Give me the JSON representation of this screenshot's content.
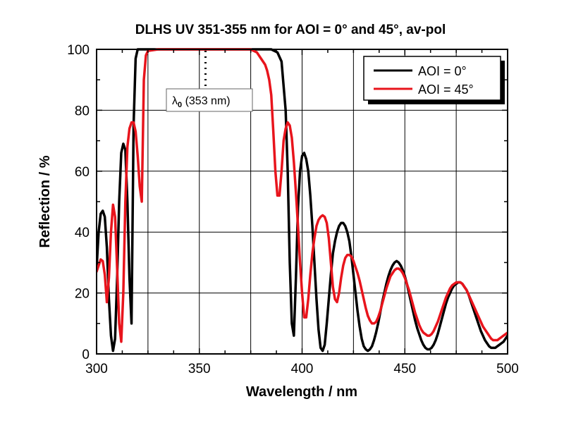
{
  "chart_data": {
    "type": "line",
    "title": "DLHS UV 351-355 nm for AOI = 0° and 45°, av-pol",
    "xlabel": "Wavelength / nm",
    "ylabel": "Reflection / %",
    "xlim": [
      300,
      500
    ],
    "ylim": [
      0,
      100
    ],
    "xticks": [
      300,
      350,
      400,
      450,
      500
    ],
    "yticks": [
      0,
      20,
      40,
      60,
      80,
      100
    ],
    "grid": true,
    "legend_position": "top-right",
    "annotation": {
      "symbol": "λ",
      "subscript": "0",
      "text": " (353 nm)",
      "x": 353
    },
    "series": [
      {
        "name": "AOI = 0°",
        "color": "#000000",
        "points": [
          [
            300,
            28
          ],
          [
            301,
            40
          ],
          [
            302,
            46
          ],
          [
            303,
            47
          ],
          [
            304,
            45
          ],
          [
            305,
            35
          ],
          [
            306,
            18
          ],
          [
            307,
            6
          ],
          [
            308,
            1
          ],
          [
            309,
            5
          ],
          [
            310,
            25
          ],
          [
            311,
            50
          ],
          [
            312,
            66
          ],
          [
            313,
            69
          ],
          [
            314,
            67
          ],
          [
            315,
            50
          ],
          [
            316,
            25
          ],
          [
            317,
            10
          ],
          [
            318,
            75
          ],
          [
            319,
            97
          ],
          [
            320,
            100
          ],
          [
            325,
            100
          ],
          [
            330,
            100
          ],
          [
            340,
            100
          ],
          [
            350,
            100
          ],
          [
            360,
            100
          ],
          [
            370,
            100
          ],
          [
            380,
            100
          ],
          [
            385,
            100
          ],
          [
            388,
            99
          ],
          [
            390,
            96
          ],
          [
            392,
            80
          ],
          [
            393,
            60
          ],
          [
            394,
            30
          ],
          [
            395,
            10
          ],
          [
            396,
            6
          ],
          [
            397,
            25
          ],
          [
            398,
            48
          ],
          [
            399,
            60
          ],
          [
            400,
            65
          ],
          [
            401,
            66
          ],
          [
            402,
            64
          ],
          [
            403,
            60
          ],
          [
            404,
            52
          ],
          [
            405,
            42
          ],
          [
            406,
            30
          ],
          [
            407,
            18
          ],
          [
            408,
            8
          ],
          [
            409,
            2
          ],
          [
            410,
            1
          ],
          [
            411,
            3
          ],
          [
            412,
            10
          ],
          [
            413,
            18
          ],
          [
            414,
            26
          ],
          [
            415,
            33
          ],
          [
            416,
            37
          ],
          [
            417,
            40
          ],
          [
            418,
            42
          ],
          [
            419,
            43
          ],
          [
            420,
            43
          ],
          [
            421,
            42
          ],
          [
            422,
            40
          ],
          [
            423,
            37
          ],
          [
            424,
            32
          ],
          [
            425,
            26
          ],
          [
            426,
            20
          ],
          [
            427,
            14
          ],
          [
            428,
            9
          ],
          [
            429,
            5
          ],
          [
            430,
            2.5
          ],
          [
            431,
            1.5
          ],
          [
            432,
            1
          ],
          [
            433,
            1.5
          ],
          [
            434,
            2.5
          ],
          [
            435,
            4.5
          ],
          [
            436,
            7
          ],
          [
            437,
            10
          ],
          [
            438,
            13.5
          ],
          [
            439,
            17
          ],
          [
            440,
            20
          ],
          [
            441,
            23
          ],
          [
            442,
            25.5
          ],
          [
            443,
            27.5
          ],
          [
            444,
            29
          ],
          [
            445,
            30
          ],
          [
            446,
            30.5
          ],
          [
            447,
            30
          ],
          [
            448,
            29
          ],
          [
            449,
            27.5
          ],
          [
            450,
            25.5
          ],
          [
            451,
            23
          ],
          [
            452,
            20
          ],
          [
            453,
            17
          ],
          [
            454,
            14
          ],
          [
            455,
            11
          ],
          [
            456,
            8.5
          ],
          [
            457,
            6.5
          ],
          [
            458,
            4.5
          ],
          [
            459,
            3
          ],
          [
            460,
            2
          ],
          [
            461,
            1.5
          ],
          [
            462,
            1.5
          ],
          [
            463,
            2
          ],
          [
            464,
            3
          ],
          [
            465,
            4.5
          ],
          [
            466,
            6.5
          ],
          [
            467,
            9
          ],
          [
            468,
            11.5
          ],
          [
            469,
            14
          ],
          [
            470,
            16.5
          ],
          [
            471,
            18.5
          ],
          [
            472,
            20
          ],
          [
            473,
            21.5
          ],
          [
            474,
            22.5
          ],
          [
            475,
            23
          ],
          [
            476,
            23.5
          ],
          [
            477,
            23.5
          ],
          [
            478,
            23
          ],
          [
            479,
            22
          ],
          [
            480,
            21
          ],
          [
            481,
            19.5
          ],
          [
            482,
            17.5
          ],
          [
            483,
            15.5
          ],
          [
            484,
            13.5
          ],
          [
            485,
            11.5
          ],
          [
            486,
            9.5
          ],
          [
            487,
            7.5
          ],
          [
            488,
            6
          ],
          [
            489,
            4.5
          ],
          [
            490,
            3.5
          ],
          [
            491,
            2.5
          ],
          [
            492,
            2
          ],
          [
            493,
            2
          ],
          [
            494,
            2
          ],
          [
            495,
            2.5
          ],
          [
            496,
            3
          ],
          [
            497,
            3.5
          ],
          [
            498,
            4
          ],
          [
            499,
            5
          ],
          [
            500,
            6
          ]
        ]
      },
      {
        "name": "AOI = 45°",
        "color": "#e8141c",
        "points": [
          [
            300,
            27
          ],
          [
            301,
            29
          ],
          [
            302,
            31
          ],
          [
            303,
            30.5
          ],
          [
            304,
            26
          ],
          [
            305,
            17
          ],
          [
            306,
            25
          ],
          [
            307,
            40
          ],
          [
            308,
            49
          ],
          [
            309,
            45
          ],
          [
            310,
            28
          ],
          [
            311,
            10
          ],
          [
            312,
            4
          ],
          [
            313,
            20
          ],
          [
            314,
            50
          ],
          [
            315,
            68
          ],
          [
            316,
            74
          ],
          [
            317,
            76
          ],
          [
            318,
            76
          ],
          [
            319,
            73
          ],
          [
            320,
            65
          ],
          [
            321,
            55
          ],
          [
            322,
            50
          ],
          [
            323,
            90
          ],
          [
            324,
            98
          ],
          [
            325,
            99.5
          ],
          [
            330,
            100
          ],
          [
            340,
            100
          ],
          [
            350,
            100
          ],
          [
            360,
            100
          ],
          [
            370,
            100
          ],
          [
            375,
            100
          ],
          [
            378,
            99
          ],
          [
            380,
            97
          ],
          [
            382,
            95
          ],
          [
            383,
            93
          ],
          [
            384,
            90
          ],
          [
            385,
            85
          ],
          [
            386,
            73
          ],
          [
            387,
            60
          ],
          [
            388,
            52
          ],
          [
            389,
            52
          ],
          [
            390,
            60
          ],
          [
            391,
            70
          ],
          [
            392,
            74
          ],
          [
            393,
            76
          ],
          [
            394,
            75
          ],
          [
            395,
            71
          ],
          [
            396,
            63
          ],
          [
            397,
            53
          ],
          [
            398,
            42
          ],
          [
            399,
            30
          ],
          [
            400,
            20
          ],
          [
            401,
            12
          ],
          [
            402,
            12
          ],
          [
            403,
            18
          ],
          [
            404,
            26
          ],
          [
            405,
            33
          ],
          [
            406,
            38
          ],
          [
            407,
            42
          ],
          [
            408,
            44
          ],
          [
            409,
            45
          ],
          [
            410,
            45.5
          ],
          [
            411,
            45
          ],
          [
            412,
            43
          ],
          [
            413,
            38
          ],
          [
            414,
            30
          ],
          [
            415,
            22
          ],
          [
            416,
            18
          ],
          [
            417,
            17
          ],
          [
            418,
            20
          ],
          [
            419,
            25
          ],
          [
            420,
            29
          ],
          [
            421,
            31.5
          ],
          [
            422,
            32.5
          ],
          [
            423,
            32.5
          ],
          [
            424,
            32
          ],
          [
            425,
            30.5
          ],
          [
            426,
            28.5
          ],
          [
            427,
            26.5
          ],
          [
            428,
            24
          ],
          [
            429,
            21
          ],
          [
            430,
            18
          ],
          [
            431,
            15
          ],
          [
            432,
            12.5
          ],
          [
            433,
            11
          ],
          [
            434,
            10
          ],
          [
            435,
            10
          ],
          [
            436,
            10.5
          ],
          [
            437,
            12
          ],
          [
            438,
            14
          ],
          [
            439,
            16.5
          ],
          [
            440,
            19
          ],
          [
            441,
            21.5
          ],
          [
            442,
            23.5
          ],
          [
            443,
            25.5
          ],
          [
            444,
            26.5
          ],
          [
            445,
            27.5
          ],
          [
            446,
            28
          ],
          [
            447,
            28
          ],
          [
            448,
            27.5
          ],
          [
            449,
            26.5
          ],
          [
            450,
            25
          ],
          [
            451,
            23
          ],
          [
            452,
            21
          ],
          [
            453,
            18.5
          ],
          [
            454,
            16
          ],
          [
            455,
            13.5
          ],
          [
            456,
            11.5
          ],
          [
            457,
            9.5
          ],
          [
            458,
            8
          ],
          [
            459,
            7
          ],
          [
            460,
            6.5
          ],
          [
            461,
            6
          ],
          [
            462,
            6
          ],
          [
            463,
            6.5
          ],
          [
            464,
            7.5
          ],
          [
            465,
            9
          ],
          [
            466,
            10.5
          ],
          [
            467,
            12.5
          ],
          [
            468,
            14.5
          ],
          [
            469,
            16.5
          ],
          [
            470,
            18.5
          ],
          [
            471,
            20
          ],
          [
            472,
            21.5
          ],
          [
            473,
            22.5
          ],
          [
            474,
            23
          ],
          [
            475,
            23.5
          ],
          [
            476,
            23.5
          ],
          [
            477,
            23.5
          ],
          [
            478,
            23
          ],
          [
            479,
            22
          ],
          [
            480,
            21
          ],
          [
            481,
            19.5
          ],
          [
            482,
            18
          ],
          [
            483,
            16.5
          ],
          [
            484,
            15
          ],
          [
            485,
            13.5
          ],
          [
            486,
            12
          ],
          [
            487,
            10.5
          ],
          [
            488,
            9
          ],
          [
            489,
            8
          ],
          [
            490,
            7
          ],
          [
            491,
            6
          ],
          [
            492,
            5
          ],
          [
            493,
            4.5
          ],
          [
            494,
            4.5
          ],
          [
            495,
            4.5
          ],
          [
            496,
            5
          ],
          [
            497,
            5.5
          ],
          [
            498,
            6
          ],
          [
            499,
            6.5
          ],
          [
            500,
            7
          ]
        ]
      }
    ]
  }
}
